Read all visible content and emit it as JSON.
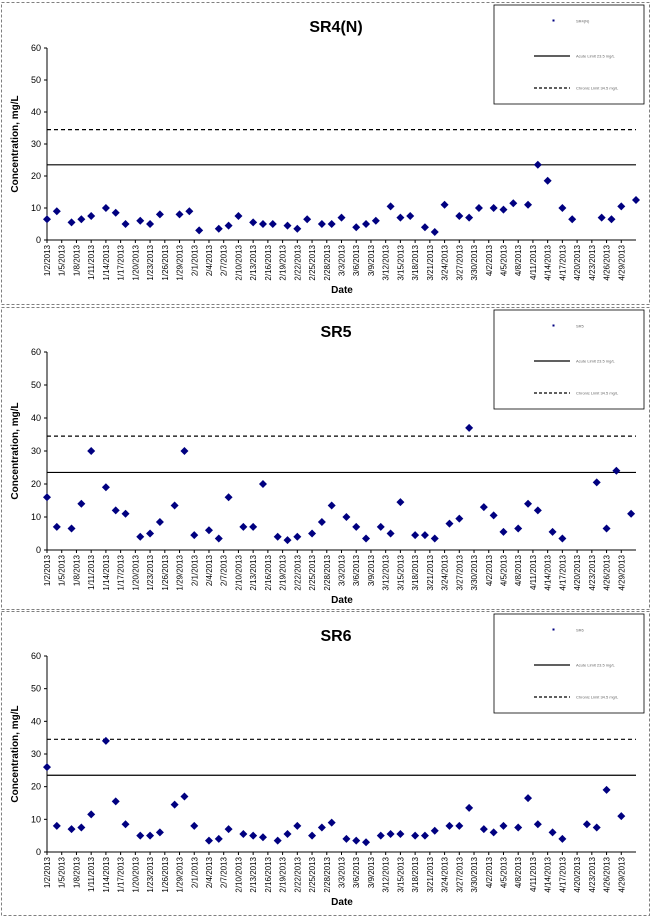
{
  "colors": {
    "marker": "#000080",
    "line": "#000000",
    "frame": "#7f7f7f"
  },
  "chart_data": [
    {
      "type": "scatter",
      "title": "SR4(N)",
      "xlabel": "Date",
      "ylabel": "Concentration, mg/L",
      "ylim": [
        0,
        60
      ],
      "yticks": [
        0,
        10,
        20,
        30,
        40,
        50,
        60
      ],
      "xticks": [
        "1/2/2013",
        "1/5/2013",
        "1/8/2013",
        "1/11/2013",
        "1/14/2013",
        "1/17/2013",
        "1/20/2013",
        "1/23/2013",
        "1/26/2013",
        "1/29/2013",
        "2/1/2013",
        "2/4/2013",
        "2/7/2013",
        "2/10/2013",
        "2/13/2013",
        "2/16/2013",
        "2/19/2013",
        "2/22/2013",
        "2/25/2013",
        "2/28/2013",
        "3/3/2013",
        "3/6/2013",
        "3/9/2013",
        "3/12/2013",
        "3/15/2013",
        "3/18/2013",
        "3/21/2013",
        "3/24/2013",
        "3/27/2013",
        "3/30/2013",
        "4/2/2013",
        "4/5/2013",
        "4/8/2013",
        "4/11/2013",
        "4/14/2013",
        "4/17/2013",
        "4/20/2013",
        "4/23/2013",
        "4/26/2013",
        "4/29/2013"
      ],
      "legend": {
        "placement": "top-right",
        "entries": [
          "SR4(N)",
          "Acute Limit 23.5 mg/L",
          "Chronic Limit 34.5 mg/L"
        ]
      },
      "lines": [
        {
          "value": 23.5,
          "style": "solid"
        },
        {
          "value": 34.5,
          "style": "dashed"
        }
      ],
      "points": [
        [
          "1/2/2013",
          6.5
        ],
        [
          "1/4/2013",
          9
        ],
        [
          "1/7/2013",
          5.5
        ],
        [
          "1/9/2013",
          6.5
        ],
        [
          "1/11/2013",
          7.5
        ],
        [
          "1/14/2013",
          10
        ],
        [
          "1/16/2013",
          8.5
        ],
        [
          "1/18/2013",
          5
        ],
        [
          "1/21/2013",
          6
        ],
        [
          "1/23/2013",
          5
        ],
        [
          "1/25/2013",
          8
        ],
        [
          "1/29/2013",
          8
        ],
        [
          "1/31/2013",
          9
        ],
        [
          "2/2/2013",
          3
        ],
        [
          "2/6/2013",
          3.5
        ],
        [
          "2/8/2013",
          4.5
        ],
        [
          "2/10/2013",
          7.5
        ],
        [
          "2/13/2013",
          5.5
        ],
        [
          "2/15/2013",
          5
        ],
        [
          "2/17/2013",
          5
        ],
        [
          "2/20/2013",
          4.5
        ],
        [
          "2/22/2013",
          3.5
        ],
        [
          "2/24/2013",
          6.5
        ],
        [
          "2/27/2013",
          5
        ],
        [
          "3/1/2013",
          5
        ],
        [
          "3/3/2013",
          7
        ],
        [
          "3/6/2013",
          4
        ],
        [
          "3/8/2013",
          5
        ],
        [
          "3/10/2013",
          6
        ],
        [
          "3/13/2013",
          10.5
        ],
        [
          "3/15/2013",
          7
        ],
        [
          "3/17/2013",
          7.5
        ],
        [
          "3/20/2013",
          4
        ],
        [
          "3/22/2013",
          2.5
        ],
        [
          "3/24/2013",
          11
        ],
        [
          "3/27/2013",
          7.5
        ],
        [
          "3/29/2013",
          7
        ],
        [
          "3/31/2013",
          10
        ],
        [
          "4/3/2013",
          10
        ],
        [
          "4/5/2013",
          9.5
        ],
        [
          "4/7/2013",
          11.5
        ],
        [
          "4/10/2013",
          11
        ],
        [
          "4/12/2013",
          23.5
        ],
        [
          "4/14/2013",
          18.5
        ],
        [
          "4/17/2013",
          10
        ],
        [
          "4/19/2013",
          6.5
        ],
        [
          "4/25/2013",
          7
        ],
        [
          "4/27/2013",
          6.5
        ],
        [
          "4/29/2013",
          10.5
        ],
        [
          "5/2/2013",
          12.5
        ]
      ]
    },
    {
      "type": "scatter",
      "title": "SR5",
      "xlabel": "Date",
      "ylabel": "Concentration, mg/L",
      "ylim": [
        0,
        60
      ],
      "yticks": [
        0,
        10,
        20,
        30,
        40,
        50,
        60
      ],
      "xticks": [
        "1/2/2013",
        "1/5/2013",
        "1/8/2013",
        "1/11/2013",
        "1/14/2013",
        "1/17/2013",
        "1/20/2013",
        "1/23/2013",
        "1/26/2013",
        "1/29/2013",
        "2/1/2013",
        "2/4/2013",
        "2/7/2013",
        "2/10/2013",
        "2/13/2013",
        "2/16/2013",
        "2/19/2013",
        "2/22/2013",
        "2/25/2013",
        "2/28/2013",
        "3/3/2013",
        "3/6/2013",
        "3/9/2013",
        "3/12/2013",
        "3/15/2013",
        "3/18/2013",
        "3/21/2013",
        "3/24/2013",
        "3/27/2013",
        "3/30/2013",
        "4/2/2013",
        "4/5/2013",
        "4/8/2013",
        "4/11/2013",
        "4/14/2013",
        "4/17/2013",
        "4/20/2013",
        "4/23/2013",
        "4/26/2013",
        "4/29/2013"
      ],
      "legend": {
        "placement": "top-right",
        "entries": [
          "SR5",
          "Acute Limit 23.5 mg/L",
          "Chronic Limit 34.5 mg/L"
        ]
      },
      "lines": [
        {
          "value": 23.5,
          "style": "solid"
        },
        {
          "value": 34.5,
          "style": "dashed"
        }
      ],
      "points": [
        [
          "1/2/2013",
          16
        ],
        [
          "1/4/2013",
          7
        ],
        [
          "1/7/2013",
          6.5
        ],
        [
          "1/9/2013",
          14
        ],
        [
          "1/11/2013",
          30
        ],
        [
          "1/14/2013",
          19
        ],
        [
          "1/16/2013",
          12
        ],
        [
          "1/18/2013",
          11
        ],
        [
          "1/21/2013",
          4
        ],
        [
          "1/23/2013",
          5
        ],
        [
          "1/25/2013",
          8.5
        ],
        [
          "1/28/2013",
          13.5
        ],
        [
          "1/30/2013",
          30
        ],
        [
          "2/1/2013",
          4.5
        ],
        [
          "2/4/2013",
          6
        ],
        [
          "2/6/2013",
          3.5
        ],
        [
          "2/8/2013",
          16
        ],
        [
          "2/11/2013",
          7
        ],
        [
          "2/13/2013",
          7
        ],
        [
          "2/15/2013",
          20
        ],
        [
          "2/18/2013",
          4
        ],
        [
          "2/20/2013",
          3
        ],
        [
          "2/22/2013",
          4
        ],
        [
          "2/25/2013",
          5
        ],
        [
          "2/27/2013",
          8.5
        ],
        [
          "3/1/2013",
          13.5
        ],
        [
          "3/4/2013",
          10
        ],
        [
          "3/6/2013",
          7
        ],
        [
          "3/8/2013",
          3.5
        ],
        [
          "3/11/2013",
          7
        ],
        [
          "3/13/2013",
          5
        ],
        [
          "3/15/2013",
          14.5
        ],
        [
          "3/18/2013",
          4.5
        ],
        [
          "3/20/2013",
          4.5
        ],
        [
          "3/22/2013",
          3.5
        ],
        [
          "3/25/2013",
          8
        ],
        [
          "3/27/2013",
          9.5
        ],
        [
          "3/29/2013",
          37
        ],
        [
          "4/1/2013",
          13
        ],
        [
          "4/3/2013",
          10.5
        ],
        [
          "4/5/2013",
          5.5
        ],
        [
          "4/8/2013",
          6.5
        ],
        [
          "4/10/2013",
          14
        ],
        [
          "4/12/2013",
          12
        ],
        [
          "4/15/2013",
          5.5
        ],
        [
          "4/17/2013",
          3.5
        ],
        [
          "4/24/2013",
          20.5
        ],
        [
          "4/26/2013",
          6.5
        ],
        [
          "4/28/2013",
          24
        ],
        [
          "5/1/2013",
          11
        ]
      ]
    },
    {
      "type": "scatter",
      "title": "SR6",
      "xlabel": "Date",
      "ylabel": "Concentration, mg/L",
      "ylim": [
        0,
        60
      ],
      "yticks": [
        0,
        10,
        20,
        30,
        40,
        50,
        60
      ],
      "xticks": [
        "1/2/2013",
        "1/5/2013",
        "1/8/2013",
        "1/11/2013",
        "1/14/2013",
        "1/17/2013",
        "1/20/2013",
        "1/23/2013",
        "1/26/2013",
        "1/29/2013",
        "2/1/2013",
        "2/4/2013",
        "2/7/2013",
        "2/10/2013",
        "2/13/2013",
        "2/16/2013",
        "2/19/2013",
        "2/22/2013",
        "2/25/2013",
        "2/28/2013",
        "3/3/2013",
        "3/6/2013",
        "3/9/2013",
        "3/12/2013",
        "3/15/2013",
        "3/18/2013",
        "3/21/2013",
        "3/24/2013",
        "3/27/2013",
        "3/30/2013",
        "4/2/2013",
        "4/5/2013",
        "4/8/2013",
        "4/11/2013",
        "4/14/2013",
        "4/17/2013",
        "4/20/2013",
        "4/23/2013",
        "4/26/2013",
        "4/29/2013"
      ],
      "legend": {
        "placement": "top-right",
        "entries": [
          "SR6",
          "Acute Limit 23.5 mg/L",
          "Chronic Limit 34.5 mg/L"
        ]
      },
      "lines": [
        {
          "value": 23.5,
          "style": "solid"
        },
        {
          "value": 34.5,
          "style": "dashed"
        }
      ],
      "points": [
        [
          "1/2/2013",
          26
        ],
        [
          "1/4/2013",
          8
        ],
        [
          "1/7/2013",
          7
        ],
        [
          "1/9/2013",
          7.5
        ],
        [
          "1/11/2013",
          11.5
        ],
        [
          "1/14/2013",
          34
        ],
        [
          "1/16/2013",
          15.5
        ],
        [
          "1/18/2013",
          8.5
        ],
        [
          "1/21/2013",
          5
        ],
        [
          "1/23/2013",
          5
        ],
        [
          "1/25/2013",
          6
        ],
        [
          "1/28/2013",
          14.5
        ],
        [
          "1/30/2013",
          17
        ],
        [
          "2/1/2013",
          8
        ],
        [
          "2/4/2013",
          3.5
        ],
        [
          "2/6/2013",
          4
        ],
        [
          "2/8/2013",
          7
        ],
        [
          "2/11/2013",
          5.5
        ],
        [
          "2/13/2013",
          5
        ],
        [
          "2/15/2013",
          4.5
        ],
        [
          "2/18/2013",
          3.5
        ],
        [
          "2/20/2013",
          5.5
        ],
        [
          "2/22/2013",
          8
        ],
        [
          "2/25/2013",
          5
        ],
        [
          "2/27/2013",
          7.5
        ],
        [
          "3/1/2013",
          9
        ],
        [
          "3/4/2013",
          4
        ],
        [
          "3/6/2013",
          3.5
        ],
        [
          "3/8/2013",
          3
        ],
        [
          "3/11/2013",
          5
        ],
        [
          "3/13/2013",
          5.5
        ],
        [
          "3/15/2013",
          5.5
        ],
        [
          "3/18/2013",
          5
        ],
        [
          "3/20/2013",
          5
        ],
        [
          "3/22/2013",
          6.5
        ],
        [
          "3/25/2013",
          8
        ],
        [
          "3/27/2013",
          8
        ],
        [
          "3/29/2013",
          13.5
        ],
        [
          "4/1/2013",
          7
        ],
        [
          "4/3/2013",
          6
        ],
        [
          "4/5/2013",
          8
        ],
        [
          "4/8/2013",
          7.5
        ],
        [
          "4/10/2013",
          16.5
        ],
        [
          "4/12/2013",
          8.5
        ],
        [
          "4/15/2013",
          6
        ],
        [
          "4/17/2013",
          4
        ],
        [
          "4/22/2013",
          8.5
        ],
        [
          "4/24/2013",
          7.5
        ],
        [
          "4/26/2013",
          19
        ],
        [
          "4/29/2013",
          11
        ]
      ]
    }
  ]
}
